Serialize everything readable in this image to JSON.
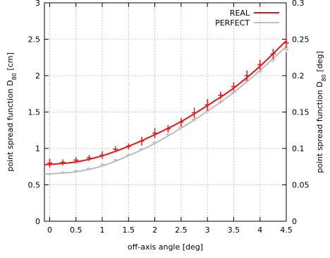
{
  "chart_data": {
    "type": "line",
    "title": "",
    "xlabel": "off-axis angle [deg]",
    "ylabel": "point spread function D80 [cm]",
    "ylabel_main": "point spread function D",
    "ylabel_sub": "80",
    "ylabel_unit": " [cm]",
    "y2label": "point spread function D80 [deg]",
    "y2label_main": "point spread function D",
    "y2label_sub": "80",
    "y2label_unit": " [deg]",
    "xlim": [
      -0.1,
      4.5
    ],
    "ylim": [
      0,
      3
    ],
    "y2lim": [
      0,
      0.3
    ],
    "xticks": [
      "0",
      "0.5",
      "1",
      "1.5",
      "2",
      "2.5",
      "3",
      "3.5",
      "4",
      "4.5"
    ],
    "yticks": [
      "0",
      "0.5",
      "1",
      "1.5",
      "2",
      "2.5",
      "3"
    ],
    "y2ticks": [
      "0",
      "0.05",
      "0.1",
      "0.15",
      "0.2",
      "0.25",
      "0.3"
    ],
    "grid": true,
    "legend_position": "top-right",
    "series": [
      {
        "name": "REAL",
        "color": "#e8161b",
        "x": [
          0,
          0.25,
          0.5,
          0.75,
          1.0,
          1.25,
          1.5,
          1.75,
          2.0,
          2.25,
          2.5,
          2.75,
          3.0,
          3.25,
          3.5,
          3.75,
          4.0,
          4.25,
          4.5
        ],
        "y": [
          0.8,
          0.81,
          0.84,
          0.87,
          0.91,
          0.99,
          1.03,
          1.1,
          1.21,
          1.27,
          1.36,
          1.49,
          1.6,
          1.73,
          1.85,
          2.0,
          2.15,
          2.3,
          2.45
        ],
        "yerr": [
          0.06,
          0.04,
          0.04,
          0.04,
          0.05,
          0.04,
          0.04,
          0.06,
          0.07,
          0.05,
          0.06,
          0.07,
          0.08,
          0.05,
          0.06,
          0.07,
          0.07,
          0.07,
          0.07
        ],
        "fit": [
          [
            0,
            0.78
          ],
          [
            0.5,
            0.815
          ],
          [
            1.0,
            0.9
          ],
          [
            1.5,
            1.03
          ],
          [
            2.0,
            1.19
          ],
          [
            2.5,
            1.37
          ],
          [
            3.0,
            1.59
          ],
          [
            3.5,
            1.83
          ],
          [
            4.0,
            2.13
          ],
          [
            4.5,
            2.48
          ]
        ]
      },
      {
        "name": "PERFECT",
        "color": "#bdbdbd",
        "x": [
          0,
          0.25,
          0.5,
          0.75,
          1.0,
          1.25,
          1.5,
          1.75,
          2.0,
          2.25,
          2.5,
          2.75,
          3.0,
          3.25,
          3.5,
          3.75,
          4.0,
          4.25,
          4.5
        ],
        "y": [
          0.65,
          0.67,
          0.69,
          0.72,
          0.78,
          0.84,
          0.91,
          0.99,
          1.08,
          1.19,
          1.29,
          1.4,
          1.52,
          1.64,
          1.77,
          1.93,
          2.06,
          2.22,
          2.36
        ],
        "yerr": [
          0.02,
          0.02,
          0.02,
          0.02,
          0.02,
          0.02,
          0.02,
          0.02,
          0.03,
          0.02,
          0.02,
          0.03,
          0.03,
          0.03,
          0.03,
          0.03,
          0.03,
          0.04,
          0.04
        ],
        "fit": [
          [
            0,
            0.65
          ],
          [
            0.5,
            0.68
          ],
          [
            1.0,
            0.76
          ],
          [
            1.5,
            0.9
          ],
          [
            2.0,
            1.07
          ],
          [
            2.5,
            1.28
          ],
          [
            3.0,
            1.51
          ],
          [
            3.5,
            1.77
          ],
          [
            4.0,
            2.07
          ],
          [
            4.5,
            2.4
          ]
        ]
      }
    ]
  }
}
